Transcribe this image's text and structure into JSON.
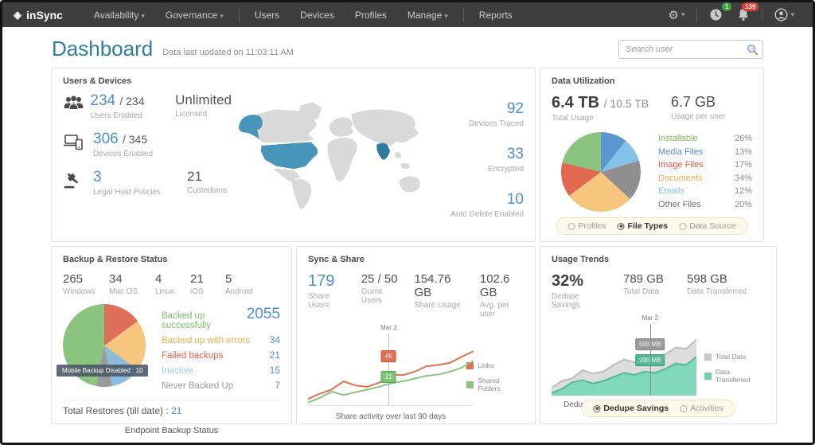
{
  "nav": {
    "brand": "inSync",
    "brand_icon": "◈",
    "caret": "▾",
    "items": [
      {
        "label": "Availability",
        "caret": true
      },
      {
        "label": "Governance",
        "caret": true
      },
      {
        "label": "Users",
        "caret": false
      },
      {
        "label": "Devices",
        "caret": false
      },
      {
        "label": "Profiles",
        "caret": false
      },
      {
        "label": "Manage",
        "caret": true
      },
      {
        "label": "Reports",
        "caret": false
      }
    ],
    "gear_icon": "⚙",
    "clock_badge": "1",
    "bell_badge": "139"
  },
  "header": {
    "title": "Dashboard",
    "updated": "Data last updated on 11:03:11 AM",
    "search_placeholder": "Search user"
  },
  "users_devices": {
    "title": "Users & Devices",
    "users_enabled": {
      "value": "234",
      "suffix": "/ 234",
      "label": "Users Enabled"
    },
    "licensed": {
      "value": "Unlimited",
      "label": "Licensed"
    },
    "devices_enabled": {
      "value": "306",
      "suffix": "/ 345",
      "label": "Devices Enabled"
    },
    "legal_hold": {
      "value": "3",
      "label": "Legal Hold Policies"
    },
    "custodians": {
      "value": "21",
      "label": "Custodians"
    },
    "devices_traced": {
      "value": "92",
      "label": "Devices Traced"
    },
    "encrypted": {
      "value": "33",
      "label": "Encrypted"
    },
    "auto_delete": {
      "value": "10",
      "label": "Auto Delete Enabled"
    },
    "map_highlight_color": "#4796ba",
    "map_highlight2_color": "#2e7ba2",
    "map_land_color": "#d9d9d9"
  },
  "data_utilization": {
    "title": "Data Utilization",
    "total": {
      "value": "6.4 TB",
      "suffix": "/ 10.5 TB",
      "label": "Total Usage"
    },
    "per_user": {
      "value": "6.7 GB",
      "label": "Usage per user"
    },
    "chart_data": {
      "type": "pie",
      "slices": [
        {
          "value": 13,
          "color": "#5b97cf"
        },
        {
          "value": 12,
          "color": "#85c2e8"
        },
        {
          "value": 20,
          "color": "#8f8f8f"
        },
        {
          "value": 34,
          "color": "#f6c57e"
        },
        {
          "value": 17,
          "color": "#e0694f"
        },
        {
          "value": 26,
          "color": "#8ac47f"
        }
      ]
    },
    "legend": [
      {
        "label": "Installable",
        "pct": "26%",
        "color": "#7cbb55"
      },
      {
        "label": "Media Files",
        "pct": "13%",
        "color": "#4e8fcf"
      },
      {
        "label": "Image Files",
        "pct": "17%",
        "color": "#e05a42"
      },
      {
        "label": "Documents",
        "pct": "34%",
        "color": "#f2ab50"
      },
      {
        "label": "Emails",
        "pct": "12%",
        "color": "#7fc0e8"
      },
      {
        "label": "Other Files",
        "pct": "20%",
        "color": "#6f6f6f"
      }
    ],
    "toggle": {
      "options": [
        {
          "label": "Profiles",
          "selected": false
        },
        {
          "label": "File Types",
          "selected": true
        },
        {
          "label": "Data Source",
          "selected": false
        }
      ]
    }
  },
  "backup_restore": {
    "title": "Backup & Restore Status",
    "platforms": [
      {
        "value": "265",
        "label": "Windows"
      },
      {
        "value": "34",
        "label": "Mac OS"
      },
      {
        "value": "4",
        "label": "Linux"
      },
      {
        "value": "21",
        "label": "iOS"
      },
      {
        "value": "5",
        "label": "Android"
      }
    ],
    "chart_data": {
      "type": "pie",
      "slices": [
        {
          "value": 15,
          "color": "#dd6e57"
        },
        {
          "value": 20,
          "color": "#f6c57e"
        },
        {
          "value": 12,
          "color": "#8cbcdc"
        },
        {
          "value": 6,
          "color": "#9a9a9a"
        },
        {
          "value": 47,
          "color": "#8ac47f"
        }
      ]
    },
    "tooltip": "Mobile Backup Disabled : 10",
    "legend": [
      {
        "label": "Backed up successfully",
        "value": "2055",
        "color": "#7cbf6e"
      },
      {
        "label": "Backed up with errors",
        "value": "34",
        "color": "#f0ad4e"
      },
      {
        "label": "Failed backups",
        "value": "21",
        "color": "#e0604a"
      },
      {
        "label": "Inactive",
        "value": "15",
        "color": "#9fd0ea"
      },
      {
        "label": "Never Backed Up",
        "value": "7",
        "color": "#9a9a9a"
      }
    ],
    "total_restores_label": "Total Restores (till date) :",
    "total_restores_value": "21",
    "footer": "Endpoint Backup Status"
  },
  "sync_share": {
    "title": "Sync & Share",
    "stats": [
      {
        "value": "179",
        "label": "Share Users"
      },
      {
        "value": "25 / 50",
        "label": "Guest Users"
      },
      {
        "value": "154.76 GB",
        "label": "Share Usage"
      },
      {
        "value": "102.6 GB",
        "label": "Avg. per user"
      }
    ],
    "marker": {
      "date": "Mar 2",
      "links_value": "45",
      "folders_value": "21"
    },
    "caption": "Share activity over last 90 days",
    "legend": [
      {
        "label": "Links",
        "color": "#e0704f"
      },
      {
        "label": "Shared Folders",
        "color": "#8ac47f"
      }
    ],
    "chart_data": {
      "type": "line",
      "series": [
        {
          "name": "Links",
          "color": "#e0704f",
          "points": [
            10,
            18,
            24,
            36,
            30,
            28,
            34,
            46,
            45,
            50,
            58,
            60,
            63,
            72,
            80
          ]
        },
        {
          "name": "Shared Folders",
          "color": "#8ac47f",
          "points": [
            5,
            12,
            21,
            16,
            20,
            24,
            28,
            33,
            36,
            40,
            44,
            46,
            50,
            56,
            66
          ]
        }
      ]
    }
  },
  "usage_trends": {
    "title": "Usage Trends",
    "stats": [
      {
        "value": "32%",
        "label": "Dedupe Savings"
      },
      {
        "value": "789 GB",
        "label": "Total Data"
      },
      {
        "value": "598 GB",
        "label": "Data Transferred"
      }
    ],
    "marker": {
      "date": "Mar 2",
      "total_value": "500 MB",
      "transferred_value": "200 MB"
    },
    "caption": "Dedupe Savings over last 90 days",
    "legend": [
      {
        "label": "Total Data",
        "color": "#c9c9c9"
      },
      {
        "label": "Data Transferred",
        "color": "#6fceac"
      }
    ],
    "chart_data": {
      "type": "area",
      "series": [
        {
          "name": "Total Data",
          "color": "#bdbdbd",
          "fill": "#dcdcdc",
          "points": [
            12,
            22,
            26,
            38,
            33,
            36,
            46,
            54,
            50,
            58,
            56,
            62,
            72,
            70,
            84
          ]
        },
        {
          "name": "Data Transferred",
          "color": "#52bb94",
          "fill": "#82d8ba",
          "points": [
            4,
            10,
            20,
            23,
            18,
            22,
            28,
            34,
            31,
            36,
            34,
            40,
            48,
            46,
            58
          ]
        }
      ]
    },
    "toggle": {
      "options": [
        {
          "label": "Dedupe Savings",
          "selected": true
        },
        {
          "label": "Activities",
          "selected": false
        }
      ]
    }
  }
}
